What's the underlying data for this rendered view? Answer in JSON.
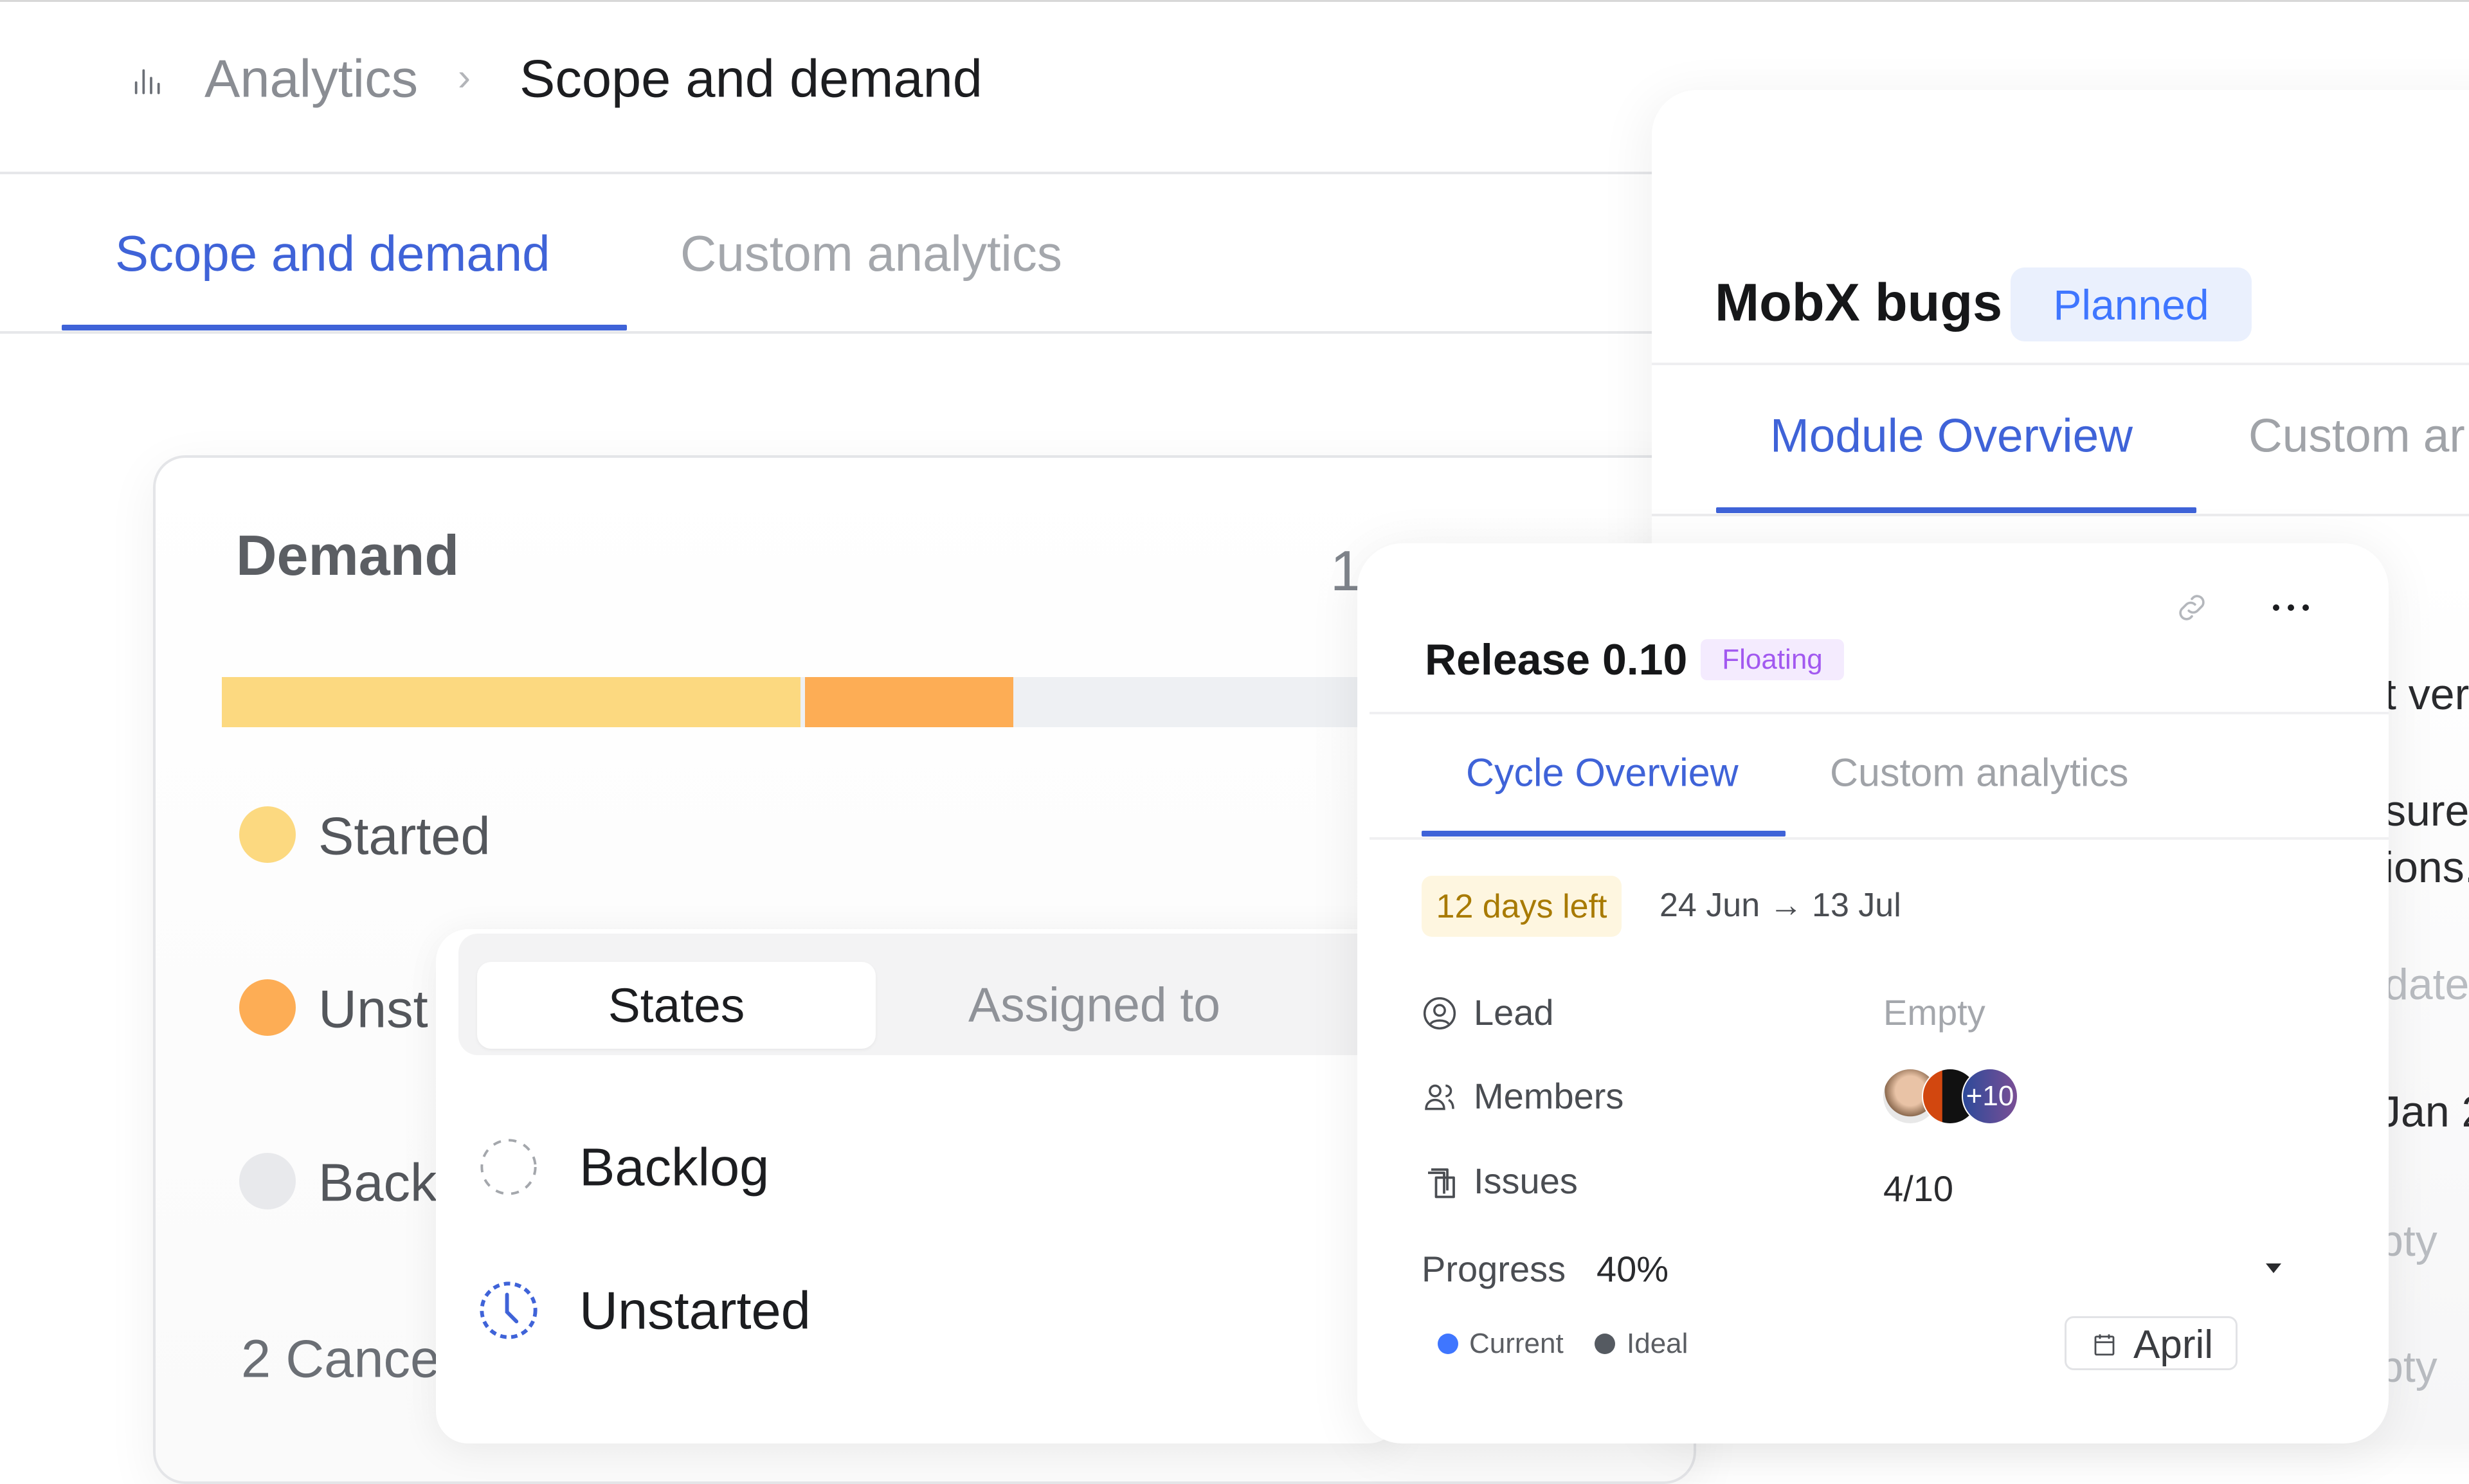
{
  "breadcrumb": {
    "icon": "bar-chart-icon",
    "parent": "Analytics",
    "separator": "›",
    "current": "Scope and demand"
  },
  "tabs": [
    {
      "label": "Scope and demand",
      "active": true
    },
    {
      "label": "Custom analytics",
      "active": false
    }
  ],
  "demand": {
    "title": "Demand",
    "total_partial": "1",
    "bar": {
      "segments": [
        {
          "state": "Started",
          "fraction": 0.5,
          "color": "#fcd980"
        },
        {
          "state": "Unstarted",
          "fraction": 0.18,
          "color": "#fdad55"
        }
      ],
      "track_color": "#eef0f3"
    },
    "legend": [
      {
        "label": "Started",
        "color": "#fcd980"
      },
      {
        "label": "Unst",
        "color": "#fdad55"
      },
      {
        "label": "Back",
        "color": "#e8e9ec"
      }
    ],
    "cancelled_partial": "2 Cance"
  },
  "states_popup": {
    "segments": [
      {
        "label": "States",
        "active": true
      },
      {
        "label": "Assigned to",
        "active": false
      }
    ],
    "items": [
      {
        "label": "Backlog",
        "icon": "backlog-dashed-circle-icon"
      },
      {
        "label": "Unstarted",
        "icon": "unstarted-clock-icon"
      }
    ]
  },
  "module": {
    "title": "MobX bugs",
    "status": "Planned",
    "tabs": [
      {
        "label": "Module Overview",
        "active": true
      },
      {
        "label": "Custom ar",
        "active": false
      }
    ],
    "clipped_text": [
      "t vers",
      "sure y",
      "ions.",
      "date",
      "Jan 2",
      "pty",
      "pty"
    ]
  },
  "cycle": {
    "title": "Release 0.10",
    "badge": "Floating",
    "tabs": [
      {
        "label": "Cycle Overview",
        "active": true
      },
      {
        "label": "Custom analytics",
        "active": false
      }
    ],
    "days_left": "12 days left",
    "date_range": "24 Jun → 13 Jul",
    "properties": [
      {
        "label": "Lead",
        "icon": "user-circle-icon",
        "value": "Empty"
      },
      {
        "label": "Members",
        "icon": "users-icon",
        "value": "+10"
      },
      {
        "label": "Issues",
        "icon": "issues-stack-icon",
        "value": "4/10"
      }
    ],
    "progress_label": "Progress",
    "progress_value": "40%",
    "legend": [
      {
        "label": "Current",
        "color": "#3f76ff"
      },
      {
        "label": "Ideal",
        "color": "#555a61"
      }
    ],
    "month_button": "April",
    "colors": {
      "accent": "#3f63d8",
      "badge_text": "#a259f0",
      "badge_bg": "#f4ebfe",
      "days_bg": "#fef6e0",
      "days_text": "#a87a00"
    }
  }
}
